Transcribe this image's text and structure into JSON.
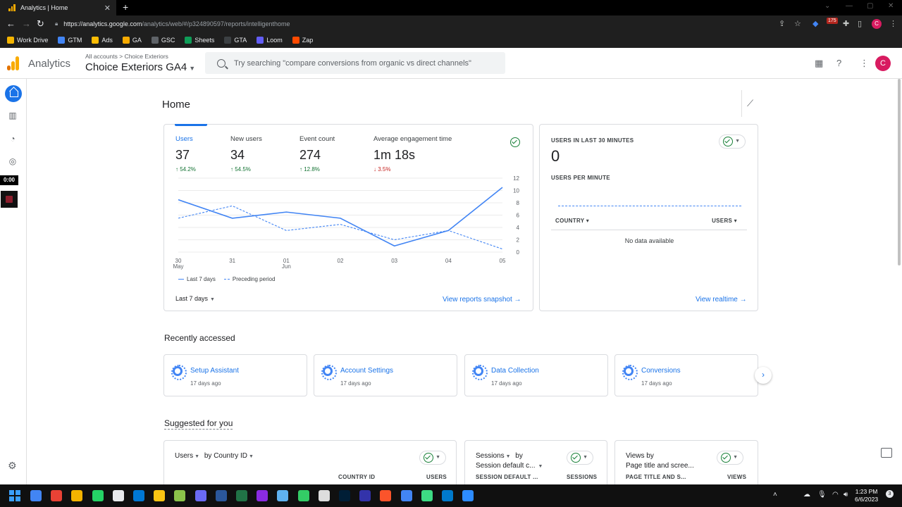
{
  "browser": {
    "tab_title": "Analytics | Home",
    "url_host": "https://analytics.google.com",
    "url_path": "/analytics/web/#/p324890597/reports/intelligenthome",
    "bookmarks": [
      {
        "label": "Work Drive",
        "color": "#f4b400"
      },
      {
        "label": "GTM",
        "color": "#4285f4"
      },
      {
        "label": "Ads",
        "color": "#fbbc04"
      },
      {
        "label": "GA",
        "color": "#f9ab00"
      },
      {
        "label": "GSC",
        "color": "#5f6368"
      },
      {
        "label": "Sheets",
        "color": "#0f9d58"
      },
      {
        "label": "GTA",
        "color": "#3c4043"
      },
      {
        "label": "Loom",
        "color": "#625df5"
      },
      {
        "label": "Zap",
        "color": "#ff4a00"
      }
    ],
    "extension_badge": "175",
    "profile_initial": "C"
  },
  "header": {
    "brand": "Analytics",
    "breadcrumb_root": "All accounts",
    "breadcrumb_sep": ">",
    "breadcrumb_account": "Choice Exteriors",
    "property": "Choice Exteriors GA4",
    "search_placeholder": "Try searching \"compare conversions from organic vs direct channels\"",
    "avatar_initial": "C"
  },
  "rail": {
    "timer": "0:00"
  },
  "page": {
    "title": "Home"
  },
  "overview": {
    "metrics": [
      {
        "label": "Users",
        "value": "37",
        "delta": "54.2%",
        "dir": "up"
      },
      {
        "label": "New users",
        "value": "34",
        "delta": "54.5%",
        "dir": "up"
      },
      {
        "label": "Event count",
        "value": "274",
        "delta": "12.8%",
        "dir": "up"
      },
      {
        "label": "Average engagement time",
        "value": "1m 18s",
        "delta": "3.5%",
        "dir": "down"
      }
    ],
    "legend_current": "Last 7 days",
    "legend_previous": "Preceding period",
    "range_label": "Last 7 days",
    "link_label": "View reports snapshot"
  },
  "chart_data": {
    "type": "line",
    "x": [
      "30 May",
      "31",
      "01 Jun",
      "02",
      "03",
      "04",
      "05"
    ],
    "x_tick_top": [
      "30",
      "31",
      "01",
      "02",
      "03",
      "04",
      "05"
    ],
    "x_tick_bottom": [
      "May",
      "",
      "Jun",
      "",
      "",
      "",
      ""
    ],
    "series": [
      {
        "name": "Last 7 days",
        "style": "solid",
        "values": [
          8.5,
          5.5,
          6.5,
          5.5,
          1.0,
          3.5,
          10.5
        ]
      },
      {
        "name": "Preceding period",
        "style": "dashed",
        "values": [
          5.5,
          7.5,
          3.5,
          4.5,
          2.0,
          3.5,
          0.5
        ]
      }
    ],
    "y_ticks": [
      0,
      2,
      4,
      6,
      8,
      10,
      12
    ],
    "ylim": [
      0,
      12
    ],
    "y_axis_side": "right",
    "grid": true,
    "legend_position": "bottom-left",
    "color": "#4285f4"
  },
  "realtime": {
    "label": "USERS IN LAST 30 MINUTES",
    "value": "0",
    "per_minute_label": "USERS PER MINUTE",
    "col_country": "COUNTRY",
    "col_users": "USERS",
    "empty": "No data available",
    "link_label": "View realtime"
  },
  "recent": {
    "title": "Recently accessed",
    "items": [
      {
        "name": "Setup Assistant",
        "time": "17 days ago"
      },
      {
        "name": "Account Settings",
        "time": "17 days ago"
      },
      {
        "name": "Data Collection",
        "time": "17 days ago"
      },
      {
        "name": "Conversions",
        "time": "17 days ago"
      }
    ]
  },
  "suggested": {
    "title": "Suggested for you",
    "cards": [
      {
        "dim1": "Users",
        "by": "by",
        "dim2": "Country ID",
        "sub": "",
        "col1": "COUNTRY ID",
        "col2": "USERS"
      },
      {
        "dim1": "Sessions",
        "by": "by",
        "dim2": "",
        "sub": "Session default c...",
        "col1": "SESSION DEFAULT ...",
        "col2": "SESSIONS"
      },
      {
        "dim1": "Views by",
        "by": "",
        "dim2": "",
        "sub": "Page title and scree...",
        "col1": "PAGE TITLE AND S...",
        "col2": "VIEWS"
      }
    ]
  },
  "taskbar": {
    "time": "1:23 PM",
    "date": "6/6/2023",
    "notif_count": "3"
  }
}
